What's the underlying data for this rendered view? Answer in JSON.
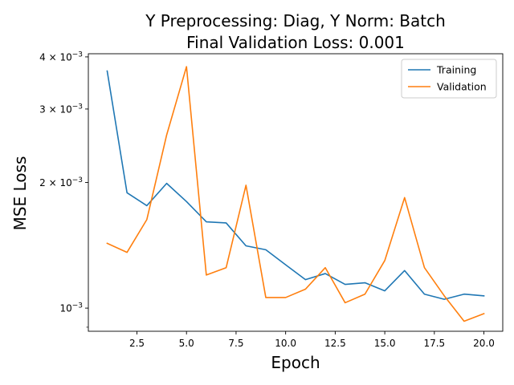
{
  "chart_data": {
    "type": "line",
    "title_line1": "Y Preprocessing: Diag, Y Norm: Batch",
    "title_line2": "Final Validation Loss: 0.001",
    "xlabel": "Epoch",
    "ylabel": "MSE Loss",
    "xlim": [
      0.05,
      20.95
    ],
    "ylim": [
      0.00088,
      0.00407
    ],
    "yscale": "log",
    "grid": false,
    "legend_position": "top-right",
    "x_ticks": [
      2.5,
      5.0,
      7.5,
      10.0,
      12.5,
      15.0,
      17.5,
      20.0
    ],
    "x_tick_labels": [
      "2.5",
      "5.0",
      "7.5",
      "10.0",
      "12.5",
      "15.0",
      "17.5",
      "20.0"
    ],
    "y_major_ticks": [
      0.001,
      0.002,
      0.003,
      0.004
    ],
    "y_tick_labels": [
      {
        "base": "10",
        "exp": "−3"
      },
      {
        "base": "2 × 10",
        "exp": "−3"
      },
      {
        "base": "3 × 10",
        "exp": "−3"
      },
      {
        "base": "4 × 10",
        "exp": "−3"
      }
    ],
    "y_minor_ticks": [
      0.0009
    ],
    "x": [
      1,
      2,
      3,
      4,
      5,
      6,
      7,
      8,
      9,
      10,
      11,
      12,
      13,
      14,
      15,
      16,
      17,
      18,
      19,
      20
    ],
    "series": [
      {
        "name": "Training",
        "color": "#1f77b4",
        "values": [
          0.0037,
          0.00189,
          0.00176,
          0.00199,
          0.0018,
          0.00161,
          0.0016,
          0.00141,
          0.00138,
          0.00127,
          0.00117,
          0.00121,
          0.00114,
          0.00115,
          0.0011,
          0.00123,
          0.00108,
          0.00105,
          0.00108,
          0.00107
        ]
      },
      {
        "name": "Validation",
        "color": "#ff7f0e",
        "values": [
          0.00143,
          0.00136,
          0.00163,
          0.0026,
          0.00379,
          0.0012,
          0.00125,
          0.00197,
          0.00106,
          0.00106,
          0.00111,
          0.00125,
          0.00103,
          0.00108,
          0.0013,
          0.00184,
          0.00125,
          0.00107,
          0.00093,
          0.00097
        ]
      }
    ]
  }
}
